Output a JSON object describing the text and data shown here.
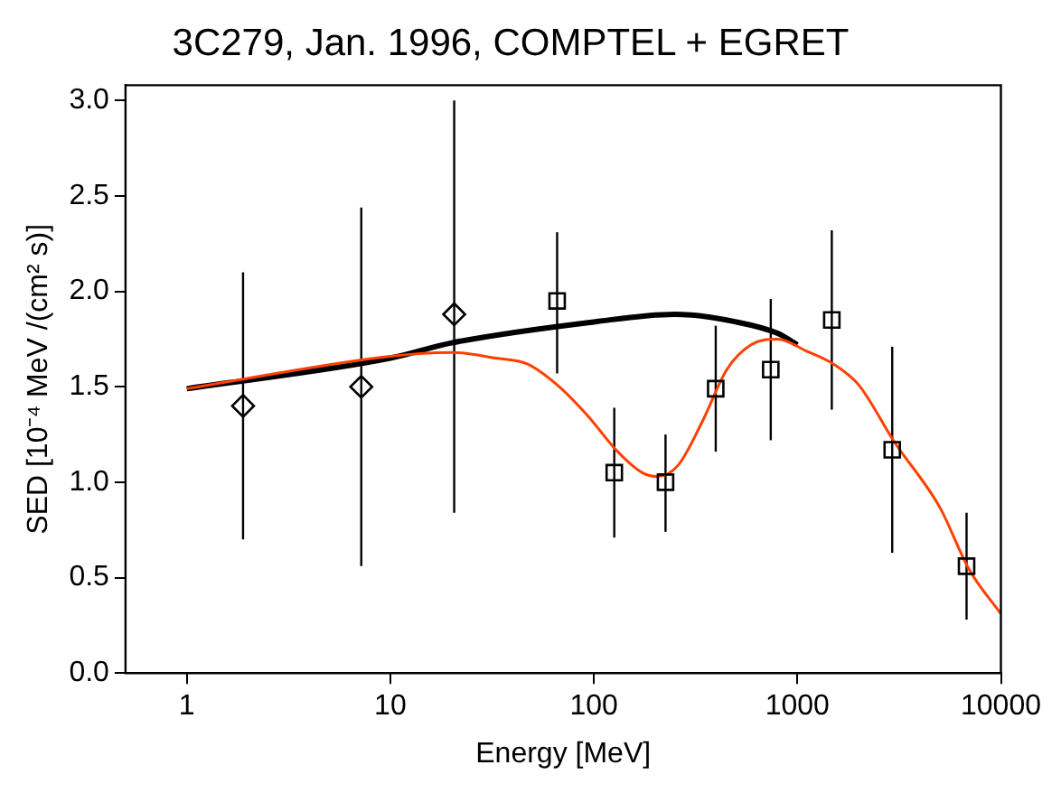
{
  "chart_data": {
    "type": "scatter",
    "title": "3C279, Jan. 1996, COMPTEL + EGRET",
    "xlabel": "Energy [MeV]",
    "ylabel": "SED [10⁻⁴ MeV /(cm² s)]",
    "log": "x",
    "grid": false,
    "xlim": [
      0.5,
      10000
    ],
    "xticks": [
      1,
      10,
      100,
      1000,
      10000
    ],
    "ylim": [
      0,
      3.08
    ],
    "yticks": [
      {
        "value": 0,
        "label": "0.0"
      },
      0.5,
      {
        "value": 1,
        "label": "1.0"
      },
      1.5,
      {
        "value": 2,
        "label": "2.0"
      },
      2.5,
      {
        "value": 3,
        "label": "3.0"
      }
    ],
    "series": [
      {
        "type": "line",
        "color": "#000000",
        "marker": "none",
        "x": [
          1,
          10,
          20,
          100,
          250,
          500,
          800,
          1000
        ],
        "values": [
          1.49,
          1.65,
          1.73,
          1.84,
          1.88,
          1.84,
          1.78,
          1.72
        ]
      },
      {
        "type": "line",
        "color": "#ff4000",
        "marker": "none",
        "x": [
          1,
          10,
          20,
          33,
          47,
          66,
          93,
          131,
          173,
          205,
          260,
          342,
          450,
          592,
          803,
          1094,
          1500,
          2000,
          3000,
          5000,
          7000,
          10000
        ],
        "values": [
          1.49,
          1.66,
          1.68,
          1.65,
          1.62,
          1.51,
          1.35,
          1.16,
          1.05,
          1.03,
          1.09,
          1.32,
          1.59,
          1.72,
          1.75,
          1.69,
          1.62,
          1.51,
          1.21,
          0.87,
          0.54,
          0.31
        ]
      },
      {
        "color": "#000000",
        "marker": "diamond",
        "x": [
          1.89,
          7.2,
          20.6
        ],
        "values": [
          1.4,
          1.5,
          1.88
        ],
        "errors": [
          [
            0.7,
            2.1
          ],
          [
            0.56,
            2.44
          ],
          [
            0.84,
            3.0
          ]
        ]
      },
      {
        "color": "#000000",
        "marker": "square",
        "x": [
          66,
          126,
          225,
          397,
          740,
          1476,
          2924,
          6780
        ],
        "values": [
          1.95,
          1.05,
          1.0,
          1.49,
          1.59,
          1.85,
          1.17,
          0.56
        ],
        "errors": [
          [
            1.57,
            2.31
          ],
          [
            0.71,
            1.39
          ],
          [
            0.74,
            1.25
          ],
          [
            1.16,
            1.82
          ],
          [
            1.22,
            1.96
          ],
          [
            1.38,
            2.32
          ],
          [
            0.63,
            1.71
          ],
          [
            0.28,
            0.84
          ]
        ]
      }
    ]
  }
}
